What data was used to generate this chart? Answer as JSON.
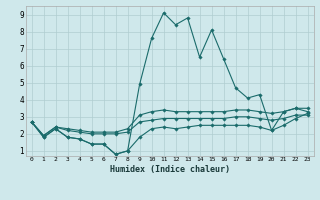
{
  "xlabel": "Humidex (Indice chaleur)",
  "xlim": [
    -0.5,
    23.5
  ],
  "ylim": [
    0.7,
    9.5
  ],
  "xticks": [
    0,
    1,
    2,
    3,
    4,
    5,
    6,
    7,
    8,
    9,
    10,
    11,
    12,
    13,
    14,
    15,
    16,
    17,
    18,
    19,
    20,
    21,
    22,
    23
  ],
  "yticks": [
    1,
    2,
    3,
    4,
    5,
    6,
    7,
    8,
    9
  ],
  "background_color": "#cfe8eb",
  "grid_color": "#b0cdd0",
  "line_color": "#1a6b6b",
  "series": {
    "max": [
      2.7,
      1.8,
      2.3,
      1.8,
      1.7,
      1.4,
      1.4,
      0.8,
      1.0,
      4.9,
      7.6,
      9.1,
      8.4,
      8.8,
      6.5,
      8.1,
      6.4,
      4.7,
      4.1,
      4.3,
      2.2,
      3.3,
      3.5,
      3.3
    ],
    "upper": [
      2.7,
      1.9,
      2.4,
      2.3,
      2.2,
      2.1,
      2.1,
      2.1,
      2.3,
      3.1,
      3.3,
      3.4,
      3.3,
      3.3,
      3.3,
      3.3,
      3.3,
      3.4,
      3.4,
      3.3,
      3.2,
      3.3,
      3.5,
      3.5
    ],
    "lower": [
      2.7,
      1.9,
      2.4,
      2.2,
      2.1,
      2.0,
      2.0,
      2.0,
      2.1,
      2.7,
      2.8,
      2.9,
      2.9,
      2.9,
      2.9,
      2.9,
      2.9,
      3.0,
      3.0,
      2.9,
      2.8,
      2.9,
      3.1,
      3.1
    ],
    "min": [
      2.7,
      1.8,
      2.3,
      1.8,
      1.7,
      1.4,
      1.4,
      0.8,
      1.0,
      1.8,
      2.3,
      2.4,
      2.3,
      2.4,
      2.5,
      2.5,
      2.5,
      2.5,
      2.5,
      2.4,
      2.2,
      2.5,
      2.9,
      3.2
    ]
  }
}
